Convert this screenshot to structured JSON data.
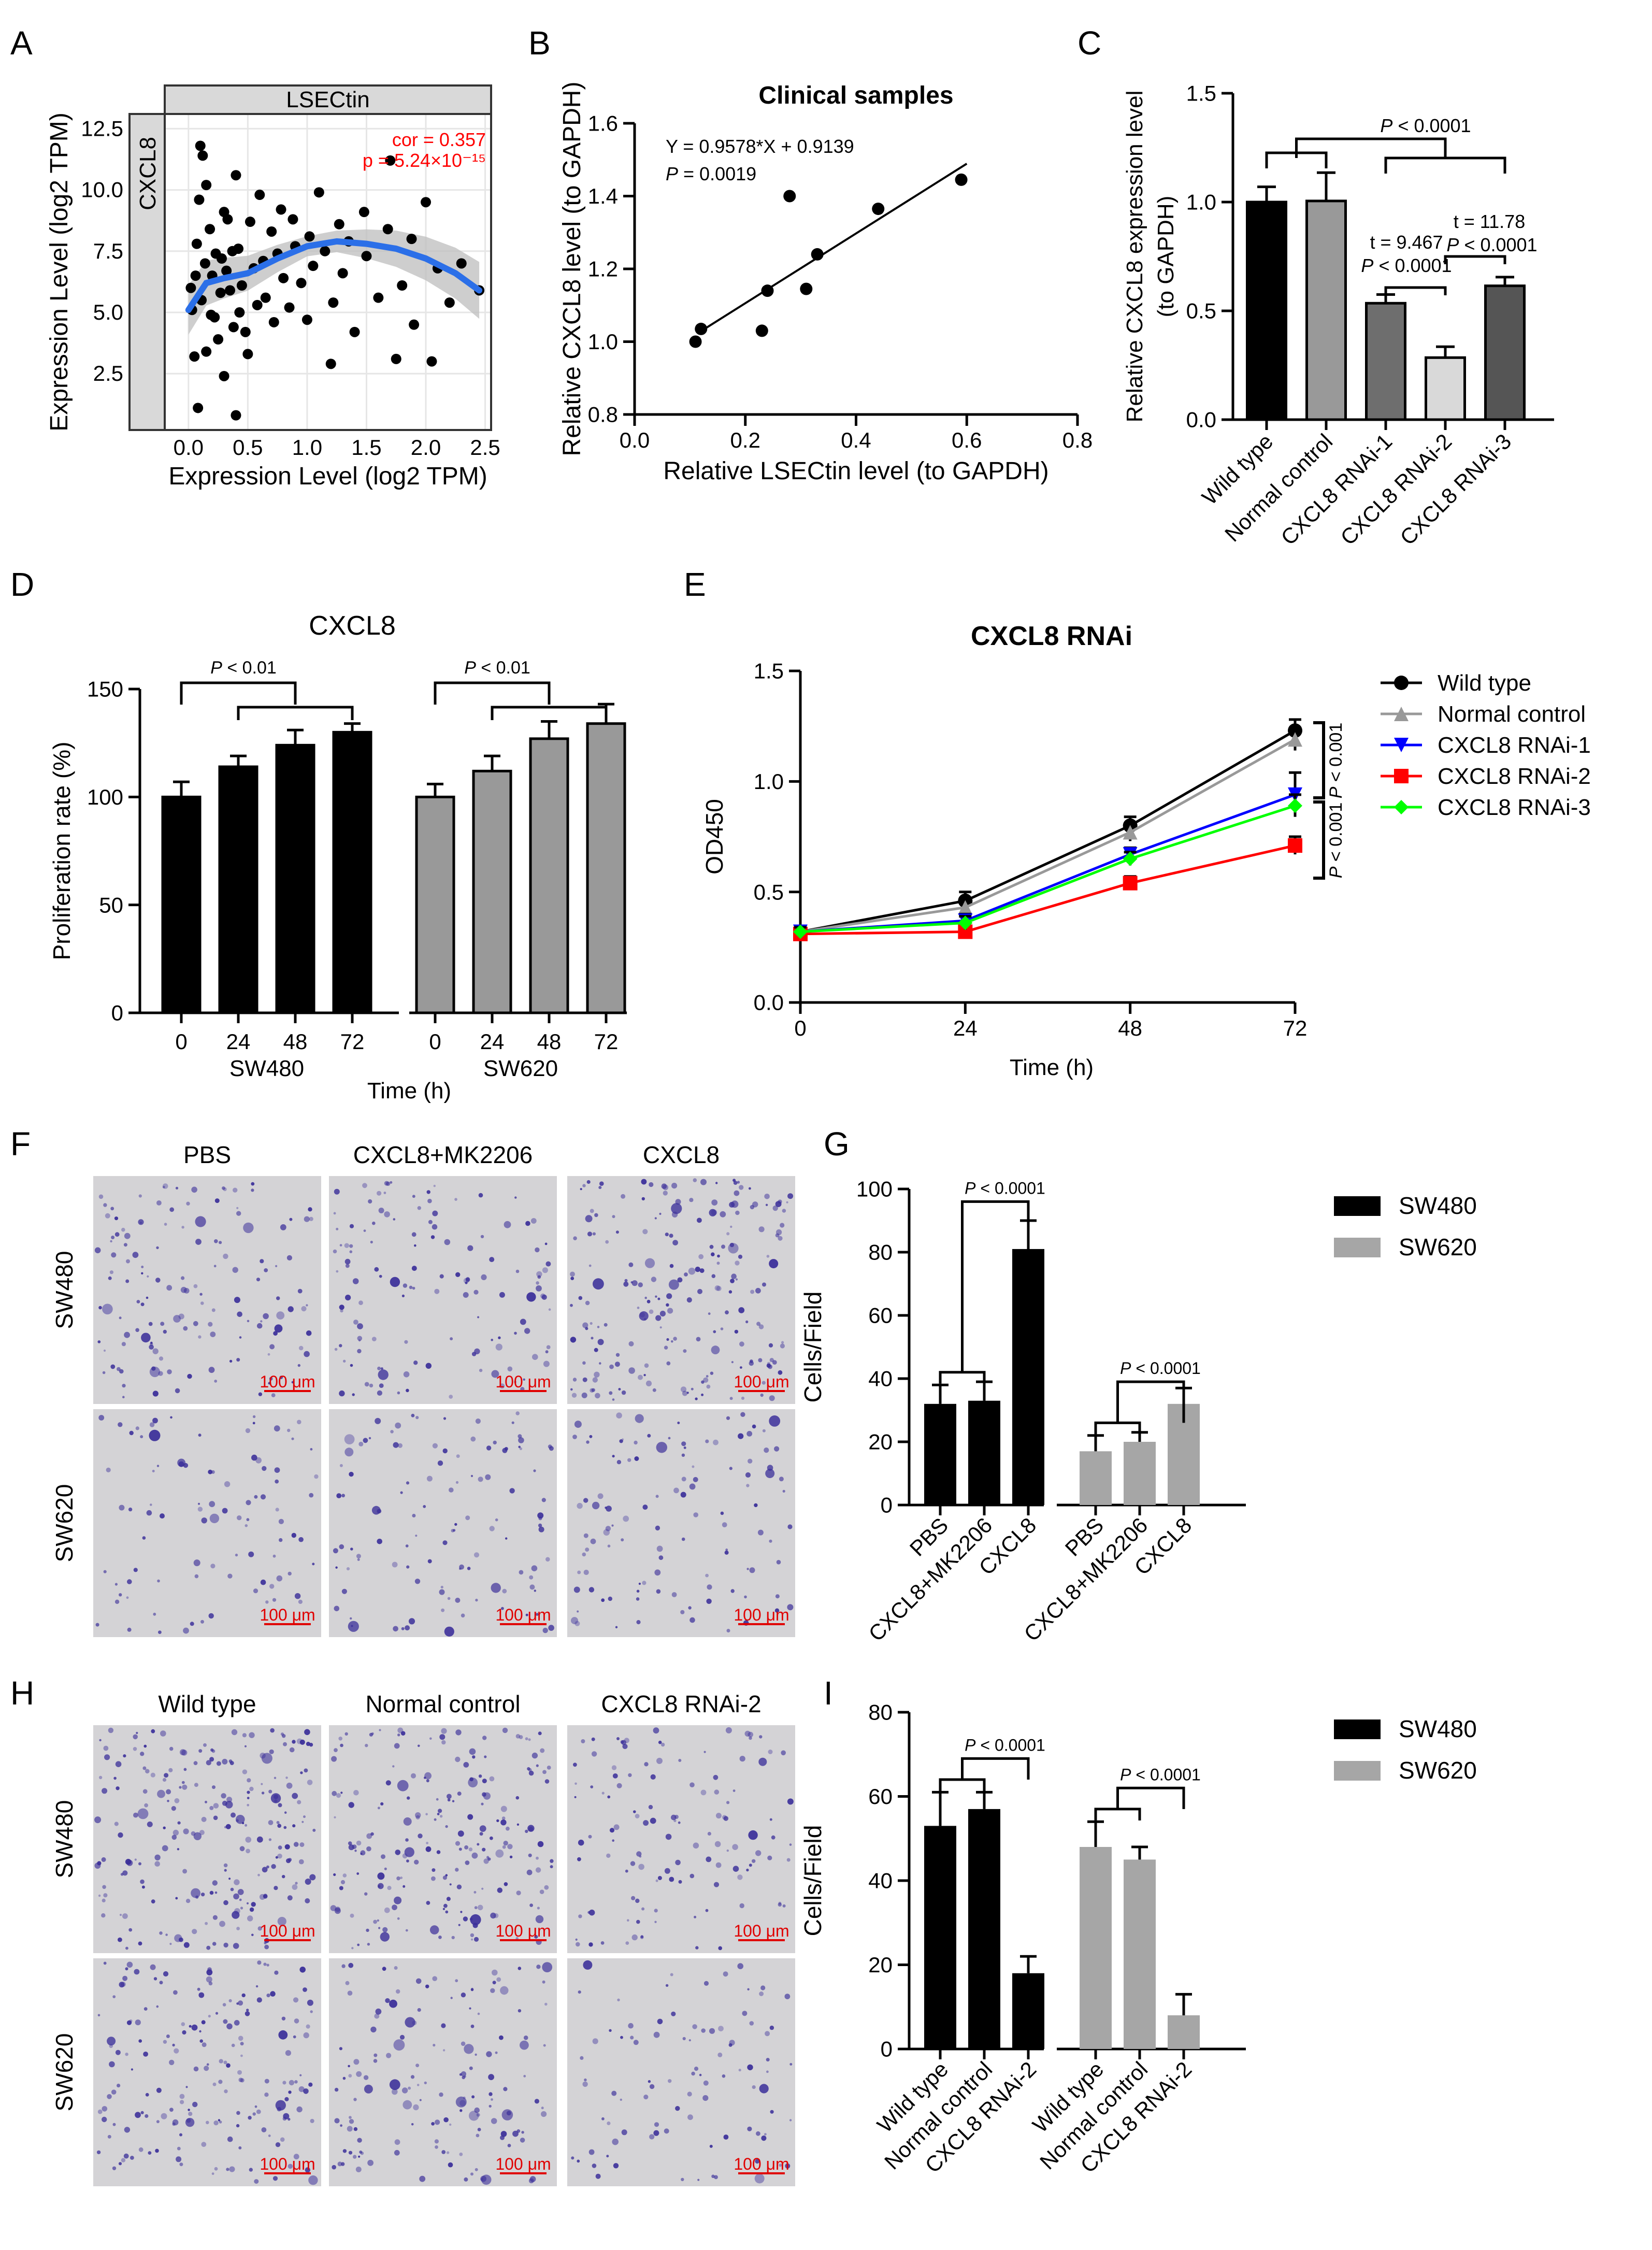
{
  "colors": {
    "black": "#000000",
    "gray": "#999999",
    "dark_gray": "#555555",
    "mid_gray": "#8c8c8c",
    "light_gray": "#d9d9d9",
    "blue": "#0000ff",
    "red": "#ff0000",
    "green": "#00ff00",
    "fit_blue": "#2b6fe8",
    "scale_red": "#e00000",
    "micro_bg": "#d4d3d6",
    "stain": "#3b2f9a"
  },
  "panels": {
    "A": "A",
    "B": "B",
    "C": "C",
    "D": "D",
    "E": "E",
    "F": "F",
    "G": "G",
    "H": "H",
    "I": "I"
  },
  "chart_data": [
    {
      "panel": "A",
      "type": "scatter",
      "facet_label": "LSECtin",
      "strip_label": "CXCL8",
      "xlabel": "Expression Level (log2 TPM)",
      "ylabel": "Expression Level (log2 TPM)",
      "xlim": [
        -0.2,
        2.55
      ],
      "ylim": [
        0.2,
        13.1
      ],
      "xticks": [
        "0.0",
        "0.5",
        "1.0",
        "1.5",
        "2.0",
        "2.5"
      ],
      "xtick_values": [
        0,
        0.5,
        1,
        1.5,
        2,
        2.5
      ],
      "yticks": [
        "2.5",
        "5.0",
        "7.5",
        "10.0",
        "12.5"
      ],
      "ytick_values": [
        2.5,
        5,
        7.5,
        10,
        12.5
      ],
      "annotation": {
        "cor": "cor = 0.357",
        "p": "p = 5.24×10⁻¹⁵"
      },
      "fit": {
        "x": [
          0,
          0.15,
          0.3,
          0.5,
          0.75,
          1.0,
          1.25,
          1.5,
          1.75,
          2.0,
          2.25,
          2.45
        ],
        "y": [
          5.1,
          6.2,
          6.4,
          6.6,
          7.2,
          7.7,
          7.9,
          7.8,
          7.6,
          7.2,
          6.6,
          5.9
        ]
      },
      "points": [
        [
          0.03,
          5.1
        ],
        [
          0.05,
          3.2
        ],
        [
          0.07,
          7.8
        ],
        [
          0.09,
          9.6
        ],
        [
          0.1,
          11.8
        ],
        [
          0.12,
          11.4
        ],
        [
          0.15,
          10.2
        ],
        [
          0.18,
          8.4
        ],
        [
          0.2,
          6.5
        ],
        [
          0.22,
          4.8
        ],
        [
          0.25,
          3.9
        ],
        [
          0.28,
          7.2
        ],
        [
          0.3,
          9.1
        ],
        [
          0.33,
          8.8
        ],
        [
          0.35,
          5.9
        ],
        [
          0.38,
          4.4
        ],
        [
          0.4,
          10.6
        ],
        [
          0.42,
          7.6
        ],
        [
          0.45,
          6.1
        ],
        [
          0.48,
          4.2
        ],
        [
          0.5,
          3.3
        ],
        [
          0.52,
          8.7
        ],
        [
          0.55,
          6.8
        ],
        [
          0.58,
          5.3
        ],
        [
          0.6,
          9.8
        ],
        [
          0.63,
          7.1
        ],
        [
          0.65,
          5.6
        ],
        [
          0.7,
          8.3
        ],
        [
          0.72,
          4.6
        ],
        [
          0.75,
          7.4
        ],
        [
          0.78,
          9.2
        ],
        [
          0.8,
          6.4
        ],
        [
          0.85,
          5.2
        ],
        [
          0.88,
          8.8
        ],
        [
          0.9,
          7.7
        ],
        [
          0.95,
          6.2
        ],
        [
          1.0,
          4.7
        ],
        [
          1.02,
          8.1
        ],
        [
          1.05,
          6.9
        ],
        [
          1.1,
          9.9
        ],
        [
          1.15,
          7.5
        ],
        [
          1.2,
          2.9
        ],
        [
          1.22,
          5.4
        ],
        [
          1.27,
          8.6
        ],
        [
          1.3,
          6.6
        ],
        [
          1.35,
          7.9
        ],
        [
          1.4,
          4.2
        ],
        [
          1.48,
          9.1
        ],
        [
          1.5,
          7.3
        ],
        [
          1.6,
          5.6
        ],
        [
          1.68,
          8.4
        ],
        [
          1.7,
          11.2
        ],
        [
          1.75,
          3.1
        ],
        [
          1.8,
          6.1
        ],
        [
          1.88,
          8.0
        ],
        [
          1.9,
          4.5
        ],
        [
          2.0,
          9.5
        ],
        [
          2.05,
          3.0
        ],
        [
          2.1,
          6.8
        ],
        [
          2.2,
          5.4
        ],
        [
          2.3,
          7.0
        ],
        [
          2.45,
          5.9
        ],
        [
          0.15,
          3.4
        ],
        [
          0.3,
          2.4
        ],
        [
          0.4,
          0.8
        ],
        [
          0.08,
          1.1
        ],
        [
          0.02,
          6.0
        ],
        [
          0.06,
          6.5
        ],
        [
          0.11,
          5.5
        ],
        [
          0.14,
          7.0
        ],
        [
          0.19,
          4.9
        ],
        [
          0.23,
          7.4
        ],
        [
          0.27,
          5.8
        ],
        [
          0.32,
          6.7
        ],
        [
          0.37,
          7.5
        ],
        [
          0.43,
          5.0
        ]
      ]
    },
    {
      "panel": "B",
      "type": "scatter",
      "title": "Clinical samples",
      "xlabel": "Relative LSECtin level (to GAPDH)",
      "ylabel": "Relative CXCL8 level (to GAPDH)",
      "xlim": [
        0,
        0.8
      ],
      "ylim": [
        0.8,
        1.6
      ],
      "xticks": [
        "0.0",
        "0.2",
        "0.4",
        "0.6",
        "0.8"
      ],
      "xtick_values": [
        0,
        0.2,
        0.4,
        0.6,
        0.8
      ],
      "yticks": [
        "0.8",
        "1.0",
        "1.2",
        "1.4",
        "1.6"
      ],
      "ytick_values": [
        0.8,
        1.0,
        1.2,
        1.4,
        1.6
      ],
      "equation": "Y = 0.9578*X + 0.9139",
      "p_label": "P",
      "p_value": "= 0.0019",
      "fit": {
        "x": [
          0.12,
          0.6
        ],
        "y": [
          1.029,
          1.489
        ]
      },
      "points": [
        [
          0.11,
          1.0
        ],
        [
          0.12,
          1.035
        ],
        [
          0.23,
          1.03
        ],
        [
          0.24,
          1.14
        ],
        [
          0.28,
          1.4
        ],
        [
          0.31,
          1.145
        ],
        [
          0.33,
          1.24
        ],
        [
          0.44,
          1.365
        ],
        [
          0.59,
          1.445
        ]
      ]
    },
    {
      "panel": "C",
      "type": "bar",
      "ylabel": "Relative CXCL8 expression  level\n(to GAPDH)",
      "ylim": [
        0,
        1.5
      ],
      "yticks": [
        "0.0",
        "0.5",
        "1.0",
        "1.5"
      ],
      "ytick_values": [
        0,
        0.5,
        1.0,
        1.5
      ],
      "categories": [
        "Wild type",
        "Normal control",
        "CXCL8 RNAi-1",
        "CXCL8 RNAi-2",
        "CXCL8 RNAi-3"
      ],
      "values": [
        1.0,
        1.005,
        0.535,
        0.285,
        0.615
      ],
      "errors": [
        0.07,
        0.13,
        0.04,
        0.05,
        0.04
      ],
      "bar_colors": [
        "#000000",
        "#999999",
        "#6e6e6e",
        "#d9d9d9",
        "#555555"
      ],
      "annotations": {
        "top_p": "P < 0.0001",
        "t1": "t = 9.467",
        "p1": "P < 0.0001",
        "t2": "t = 11.78",
        "p2": "P < 0.0001"
      }
    },
    {
      "panel": "D",
      "type": "bar",
      "title": "CXCL8",
      "ylabel": "Proliferation rate (%)",
      "xlabel": "Time (h)",
      "ylim": [
        0,
        150
      ],
      "yticks": [
        "0",
        "50",
        "100",
        "150"
      ],
      "ytick_values": [
        0,
        50,
        100,
        150
      ],
      "groups": [
        {
          "name": "SW480",
          "categories": [
            "0",
            "24",
            "48",
            "72"
          ],
          "values": [
            100,
            114,
            124,
            130
          ],
          "errors": [
            7,
            5,
            7,
            4
          ],
          "color": "#000000"
        },
        {
          "name": "SW620",
          "categories": [
            "0",
            "24",
            "48",
            "72"
          ],
          "values": [
            100,
            112,
            127,
            134
          ],
          "errors": [
            6,
            7,
            8,
            9
          ],
          "color": "#999999"
        }
      ],
      "annotations": {
        "p1": "P < 0.01",
        "p2": "P < 0.01"
      }
    },
    {
      "panel": "E",
      "type": "line",
      "title": "CXCL8 RNAi",
      "xlabel": "Time (h)",
      "ylabel": "OD450",
      "xlim": [
        0,
        72
      ],
      "ylim": [
        0,
        1.5
      ],
      "xticks": [
        "0",
        "24",
        "48",
        "72"
      ],
      "xtick_values": [
        0,
        24,
        48,
        72
      ],
      "yticks": [
        "0.0",
        "0.5",
        "1.0",
        "1.5"
      ],
      "ytick_values": [
        0,
        0.5,
        1.0,
        1.5
      ],
      "x": [
        0,
        24,
        48,
        72
      ],
      "series": [
        {
          "name": "Wild type",
          "values": [
            0.32,
            0.46,
            0.8,
            1.23
          ],
          "errors": [
            0.02,
            0.04,
            0.04,
            0.05
          ],
          "color": "#000000",
          "marker": "circle"
        },
        {
          "name": "Normal control",
          "values": [
            0.32,
            0.43,
            0.77,
            1.19
          ],
          "errors": [
            0.02,
            0.03,
            0.04,
            0.05
          ],
          "color": "#999999",
          "marker": "triangle-up"
        },
        {
          "name": "CXCL8 RNAi-1",
          "values": [
            0.32,
            0.37,
            0.67,
            0.94
          ],
          "errors": [
            0.02,
            0.03,
            0.03,
            0.1
          ],
          "color": "#0000ff",
          "marker": "triangle-down"
        },
        {
          "name": "CXCL8 RNAi-2",
          "values": [
            0.31,
            0.32,
            0.54,
            0.71
          ],
          "errors": [
            0.02,
            0.02,
            0.03,
            0.04
          ],
          "color": "#ff0000",
          "marker": "square"
        },
        {
          "name": "CXCL8 RNAi-3",
          "values": [
            0.32,
            0.36,
            0.65,
            0.89
          ],
          "errors": [
            0.02,
            0.03,
            0.03,
            0.05
          ],
          "color": "#00ff00",
          "marker": "diamond"
        }
      ],
      "annotations": {
        "p1": "P < 0.001",
        "p2": "P < 0.001"
      }
    },
    {
      "panel": "G",
      "type": "bar",
      "ylabel": "Cells/Field",
      "ylim": [
        0,
        100
      ],
      "yticks": [
        "0",
        "20",
        "40",
        "60",
        "80",
        "100"
      ],
      "ytick_values": [
        0,
        20,
        40,
        60,
        80,
        100
      ],
      "groups": [
        {
          "name": "SW480",
          "categories": [
            "PBS",
            "CXCL8+MK2206",
            "CXCL8"
          ],
          "values": [
            32,
            33,
            81
          ],
          "errors": [
            6,
            6,
            9
          ],
          "color": "#000000"
        },
        {
          "name": "SW620",
          "categories": [
            "PBS",
            "CXCL8+MK2206",
            "CXCL8"
          ],
          "values": [
            17,
            20,
            32
          ],
          "errors": [
            5,
            3,
            5
          ],
          "color": "#a6a6a6"
        }
      ],
      "annotations": {
        "p1": "P < 0.0001",
        "p2": "P < 0.0001"
      }
    },
    {
      "panel": "I",
      "type": "bar",
      "ylabel": "Cells/Field",
      "ylim": [
        0,
        80
      ],
      "yticks": [
        "0",
        "20",
        "40",
        "60",
        "80"
      ],
      "ytick_values": [
        0,
        20,
        40,
        60,
        80
      ],
      "groups": [
        {
          "name": "SW480",
          "categories": [
            "Wild type",
            "Normal control",
            "CXCL8 RNAi-2"
          ],
          "values": [
            53,
            57,
            18
          ],
          "errors": [
            8,
            4,
            4
          ],
          "color": "#000000"
        },
        {
          "name": "SW620",
          "categories": [
            "Wild type",
            "Normal control",
            "CXCL8 RNAi-2"
          ],
          "values": [
            48,
            45,
            8
          ],
          "errors": [
            6,
            3,
            5
          ],
          "color": "#a6a6a6"
        }
      ],
      "annotations": {
        "p1": "P < 0.0001",
        "p2": "P < 0.0001"
      }
    }
  ],
  "micrographs": {
    "F": {
      "columns": [
        "PBS",
        "CXCL8+MK2206",
        "CXCL8"
      ],
      "rows": [
        "SW480",
        "SW620"
      ],
      "scale_bar": "100 μm"
    },
    "H": {
      "columns": [
        "Wild type",
        "Normal control",
        "CXCL8 RNAi-2"
      ],
      "rows": [
        "SW480",
        "SW620"
      ],
      "scale_bar": "100 μm"
    }
  }
}
